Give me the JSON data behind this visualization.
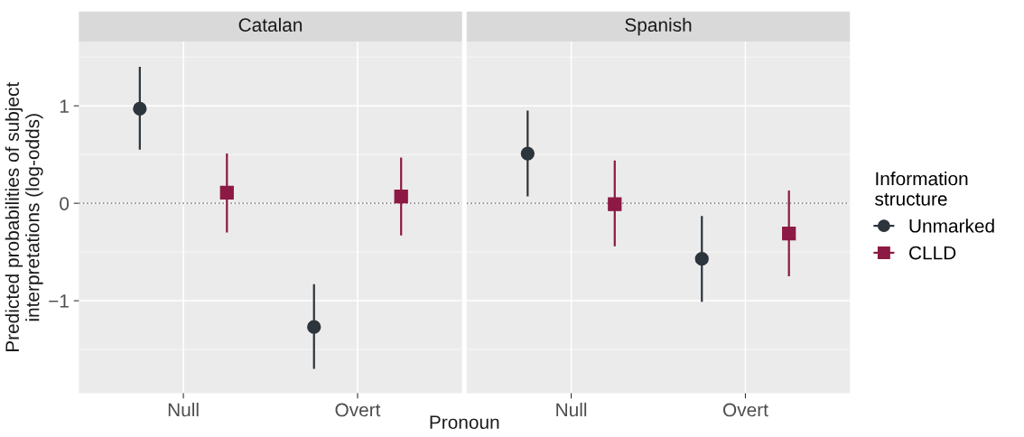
{
  "chart_data": [
    {
      "type": "scatter",
      "title": "Catalan",
      "xlabel": "Pronoun",
      "ylabel": "Predicted probabilities of subject\ninterpretations (log-odds)",
      "categories": [
        "Null",
        "Overt"
      ],
      "ylim": [
        -1.95,
        1.66
      ],
      "yticks": [
        -1,
        0,
        1
      ],
      "grid": true,
      "tick_labels": "xy",
      "ref_lines": [
        {
          "axis": "y",
          "value": 0,
          "line_style": "dotted",
          "color": "#8c8c8c"
        }
      ],
      "series": [
        {
          "color": "#2c343c",
          "marker": "circle",
          "values": [
            0.97,
            -1.27
          ],
          "errors": [
            [
              0.55,
              1.4
            ],
            [
              -1.7,
              -0.83
            ]
          ]
        },
        {
          "color": "#8c1a44",
          "marker": "square",
          "values": [
            0.11,
            0.07
          ],
          "errors": [
            [
              -0.3,
              0.51
            ],
            [
              -0.33,
              0.47
            ]
          ]
        }
      ]
    },
    {
      "type": "scatter",
      "title": "Spanish",
      "categories": [
        "Null",
        "Overt"
      ],
      "ylim": [
        -1.95,
        1.66
      ],
      "yticks": [
        -1,
        0,
        1
      ],
      "grid": true,
      "tick_labels": "x",
      "legend": "right",
      "legend_title": "Information\nstructure",
      "ref_lines": [
        {
          "axis": "y",
          "value": 0,
          "line_style": "dotted",
          "color": "#8c8c8c"
        }
      ],
      "series": [
        {
          "name": "Unmarked",
          "color": "#2c343c",
          "marker": "circle",
          "values": [
            0.51,
            -0.57
          ],
          "errors": [
            [
              0.07,
              0.95
            ],
            [
              -1.01,
              -0.13
            ]
          ]
        },
        {
          "name": "CLLD",
          "color": "#8c1a44",
          "marker": "square",
          "values": [
            -0.01,
            -0.31
          ],
          "errors": [
            [
              -0.44,
              0.44
            ],
            [
              -0.75,
              0.13
            ]
          ]
        }
      ]
    }
  ]
}
